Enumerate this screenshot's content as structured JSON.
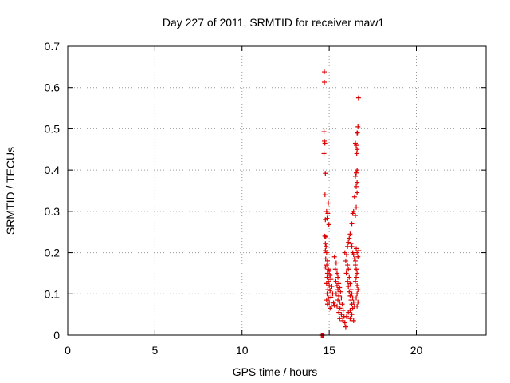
{
  "chart_data": {
    "type": "scatter",
    "title": "Day 227 of 2011, SRMTID for receiver maw1",
    "xlabel": "GPS time / hours",
    "ylabel": "SRMTID / TECUs",
    "xlim": [
      0,
      24
    ],
    "ylim": [
      0,
      0.7
    ],
    "xticks": [
      0,
      5,
      10,
      15,
      20
    ],
    "yticks": [
      0,
      0.1,
      0.2,
      0.3,
      0.4,
      0.5,
      0.6,
      0.7
    ],
    "grid": true,
    "legend": "none",
    "marker": "+",
    "color": "#dd0000",
    "series": [
      {
        "points": [
          [
            14.55,
            0.0
          ],
          [
            14.6,
            0.0
          ],
          [
            14.65,
            0.0
          ],
          [
            14.72,
            0.638
          ],
          [
            14.72,
            0.613
          ],
          [
            14.7,
            0.493
          ],
          [
            14.72,
            0.47
          ],
          [
            14.75,
            0.465
          ],
          [
            14.7,
            0.44
          ],
          [
            14.78,
            0.392
          ],
          [
            14.76,
            0.34
          ],
          [
            14.85,
            0.3
          ],
          [
            14.88,
            0.283
          ],
          [
            14.78,
            0.28
          ],
          [
            14.95,
            0.32
          ],
          [
            14.92,
            0.295
          ],
          [
            14.98,
            0.268
          ],
          [
            14.75,
            0.24
          ],
          [
            14.8,
            0.238
          ],
          [
            14.78,
            0.222
          ],
          [
            14.82,
            0.215
          ],
          [
            14.78,
            0.205
          ],
          [
            14.85,
            0.2
          ],
          [
            14.8,
            0.185
          ],
          [
            14.9,
            0.18
          ],
          [
            14.86,
            0.17
          ],
          [
            14.78,
            0.165
          ],
          [
            14.95,
            0.16
          ],
          [
            14.9,
            0.15
          ],
          [
            15.0,
            0.155
          ],
          [
            15.05,
            0.145
          ],
          [
            14.88,
            0.14
          ],
          [
            14.95,
            0.13
          ],
          [
            15.1,
            0.135
          ],
          [
            14.85,
            0.125
          ],
          [
            15.0,
            0.12
          ],
          [
            15.15,
            0.118
          ],
          [
            14.92,
            0.11
          ],
          [
            15.05,
            0.108
          ],
          [
            14.88,
            0.1
          ],
          [
            15.2,
            0.1
          ],
          [
            14.95,
            0.09
          ],
          [
            15.1,
            0.092
          ],
          [
            14.85,
            0.085
          ],
          [
            15.0,
            0.08
          ],
          [
            15.25,
            0.078
          ],
          [
            14.9,
            0.075
          ],
          [
            15.12,
            0.07
          ],
          [
            15.3,
            0.072
          ],
          [
            15.05,
            0.065
          ],
          [
            15.3,
            0.19
          ],
          [
            15.4,
            0.175
          ],
          [
            15.35,
            0.16
          ],
          [
            15.45,
            0.15
          ],
          [
            15.5,
            0.14
          ],
          [
            15.38,
            0.13
          ],
          [
            15.55,
            0.125
          ],
          [
            15.45,
            0.12
          ],
          [
            15.6,
            0.115
          ],
          [
            15.5,
            0.11
          ],
          [
            15.65,
            0.105
          ],
          [
            15.4,
            0.1
          ],
          [
            15.55,
            0.095
          ],
          [
            15.7,
            0.09
          ],
          [
            15.5,
            0.085
          ],
          [
            15.6,
            0.08
          ],
          [
            15.75,
            0.075
          ],
          [
            15.45,
            0.07
          ],
          [
            15.62,
            0.065
          ],
          [
            15.8,
            0.06
          ],
          [
            15.55,
            0.055
          ],
          [
            15.7,
            0.05
          ],
          [
            15.85,
            0.045
          ],
          [
            15.6,
            0.04
          ],
          [
            15.78,
            0.035
          ],
          [
            15.9,
            0.03
          ],
          [
            15.95,
            0.02
          ],
          [
            15.9,
            0.2
          ],
          [
            16.0,
            0.195
          ],
          [
            15.95,
            0.18
          ],
          [
            16.05,
            0.17
          ],
          [
            16.1,
            0.16
          ],
          [
            15.98,
            0.15
          ],
          [
            16.15,
            0.14
          ],
          [
            16.05,
            0.13
          ],
          [
            16.2,
            0.125
          ],
          [
            16.1,
            0.118
          ],
          [
            16.25,
            0.11
          ],
          [
            16.15,
            0.105
          ],
          [
            16.3,
            0.1
          ],
          [
            16.2,
            0.095
          ],
          [
            16.35,
            0.09
          ],
          [
            16.25,
            0.085
          ],
          [
            16.4,
            0.08
          ],
          [
            16.3,
            0.075
          ],
          [
            16.45,
            0.07
          ],
          [
            16.35,
            0.065
          ],
          [
            16.2,
            0.06
          ],
          [
            16.1,
            0.055
          ],
          [
            16.3,
            0.05
          ],
          [
            16.0,
            0.045
          ],
          [
            16.2,
            0.04
          ],
          [
            16.4,
            0.035
          ],
          [
            16.05,
            0.215
          ],
          [
            16.1,
            0.225
          ],
          [
            16.15,
            0.235
          ],
          [
            16.2,
            0.245
          ],
          [
            16.25,
            0.222
          ],
          [
            16.3,
            0.215
          ],
          [
            16.35,
            0.2
          ],
          [
            16.4,
            0.195
          ],
          [
            16.45,
            0.185
          ],
          [
            16.5,
            0.17
          ],
          [
            16.55,
            0.16
          ],
          [
            16.6,
            0.15
          ],
          [
            16.55,
            0.14
          ],
          [
            16.5,
            0.13
          ],
          [
            16.6,
            0.12
          ],
          [
            16.65,
            0.11
          ],
          [
            16.6,
            0.1
          ],
          [
            16.55,
            0.09
          ],
          [
            16.65,
            0.08
          ],
          [
            16.6,
            0.07
          ],
          [
            16.3,
            0.27
          ],
          [
            16.35,
            0.295
          ],
          [
            16.4,
            0.3
          ],
          [
            16.5,
            0.29
          ],
          [
            16.55,
            0.31
          ],
          [
            16.45,
            0.335
          ],
          [
            16.6,
            0.345
          ],
          [
            16.55,
            0.36
          ],
          [
            16.6,
            0.37
          ],
          [
            16.5,
            0.385
          ],
          [
            16.55,
            0.393
          ],
          [
            16.6,
            0.4
          ],
          [
            16.58,
            0.44
          ],
          [
            16.6,
            0.45
          ],
          [
            16.55,
            0.46
          ],
          [
            16.5,
            0.465
          ],
          [
            16.6,
            0.49
          ],
          [
            16.65,
            0.505
          ],
          [
            16.62,
            0.49
          ],
          [
            16.68,
            0.575
          ],
          [
            16.55,
            0.21
          ],
          [
            16.6,
            0.2
          ],
          [
            16.7,
            0.205
          ],
          [
            16.65,
            0.19
          ],
          [
            16.5,
            0.18
          ]
        ]
      }
    ]
  }
}
